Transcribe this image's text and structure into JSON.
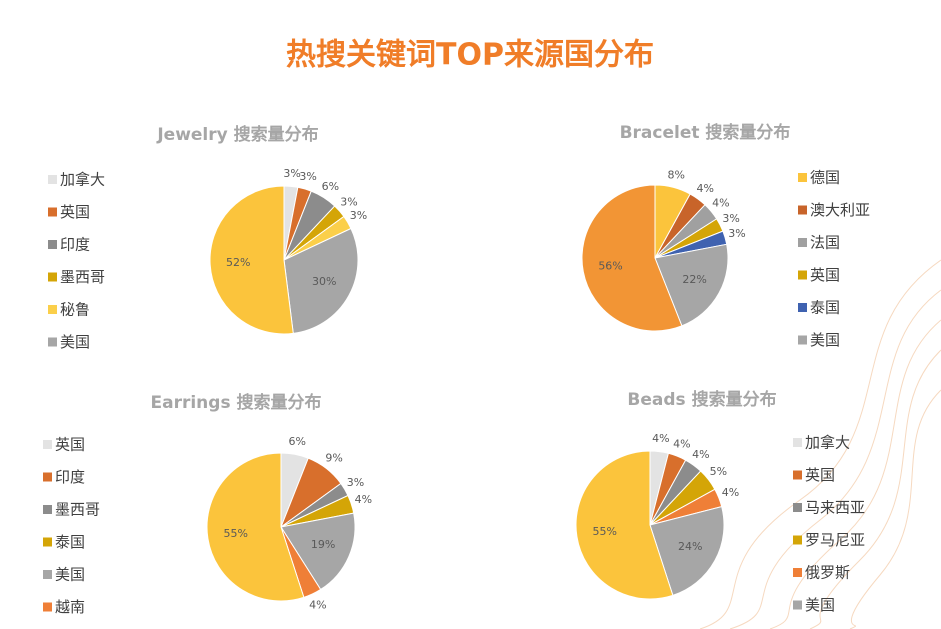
{
  "title": "热搜关键词TOP来源国分布",
  "chart_data": [
    {
      "type": "pie",
      "title": "Jewelry 搜索量分布",
      "categories": [
        "加拿大",
        "英国",
        "印度",
        "墨西哥",
        "秘鲁",
        "美国",
        null
      ],
      "values": [
        3,
        3,
        6,
        3,
        3,
        30,
        52
      ],
      "value_labels": [
        "3%",
        "3%",
        "6%",
        "3%",
        "3%",
        "30%",
        "52%"
      ],
      "colors": [
        "#e3e3e3",
        "#d86f2c",
        "#8c8c8c",
        "#d4a507",
        "#fbcf4a",
        "#a6a6a6",
        "#fbc43c"
      ]
    },
    {
      "type": "pie",
      "title": "Bracelet 搜索量分布",
      "categories": [
        "德国",
        "澳大利亚",
        "法国",
        "英国",
        "泰国",
        "美国",
        null
      ],
      "values": [
        8,
        4,
        4,
        3,
        3,
        22,
        56
      ],
      "value_labels": [
        "8%",
        "4%",
        "4%",
        "3%",
        "3%",
        "22%",
        "56%"
      ],
      "colors": [
        "#fbc43c",
        "#c8642a",
        "#a0a0a0",
        "#d4a507",
        "#3f62b0",
        "#a6a6a6",
        "#f29535"
      ]
    },
    {
      "type": "pie",
      "title": "Earrings 搜索量分布",
      "categories": [
        "英国",
        "印度",
        "墨西哥",
        "泰国",
        "美国",
        "越南",
        null
      ],
      "values": [
        6,
        9,
        3,
        4,
        19,
        4,
        55
      ],
      "value_labels": [
        "6%",
        "9%",
        "3%",
        "4%",
        "19%",
        "4%",
        "55%"
      ],
      "colors": [
        "#e3e3e3",
        "#d86f2c",
        "#8c8c8c",
        "#d4a507",
        "#a6a6a6",
        "#ef7f37",
        "#fbc43c"
      ]
    },
    {
      "type": "pie",
      "title": "Beads 搜索量分布",
      "categories": [
        "加拿大",
        "英国",
        "马来西亚",
        "罗马尼亚",
        "俄罗斯",
        "美国",
        null
      ],
      "values": [
        4,
        4,
        4,
        5,
        4,
        24,
        55
      ],
      "value_labels": [
        "4%",
        "4%",
        "4%",
        "5%",
        "4%",
        "24%",
        "55%"
      ],
      "colors": [
        "#e3e3e3",
        "#d86f2c",
        "#8c8c8c",
        "#d4a507",
        "#ef7f37",
        "#a6a6a6",
        "#fbc43c"
      ]
    }
  ]
}
